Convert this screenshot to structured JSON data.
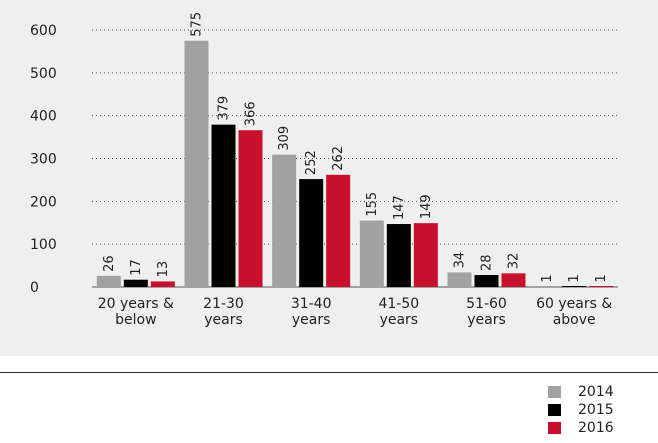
{
  "chart_data": {
    "type": "bar",
    "categories": [
      "20 years & below",
      "21-30 years",
      "31-40 years",
      "41-50 years",
      "51-60 years",
      "60 years & above"
    ],
    "category_lines": [
      [
        "20 years &",
        "below"
      ],
      [
        "21-30",
        "years"
      ],
      [
        "31-40",
        "years"
      ],
      [
        "41-50",
        "years"
      ],
      [
        "51-60",
        "years"
      ],
      [
        "60 years &",
        "above"
      ]
    ],
    "series": [
      {
        "name": "2014",
        "color": "#a1a1a1",
        "values": [
          26,
          575,
          309,
          155,
          34,
          1
        ]
      },
      {
        "name": "2015",
        "color": "#000000",
        "values": [
          17,
          379,
          252,
          147,
          28,
          1
        ]
      },
      {
        "name": "2016",
        "color": "#c8102e",
        "values": [
          13,
          366,
          262,
          149,
          32,
          1
        ]
      }
    ],
    "ylim": [
      0,
      600
    ],
    "yticks": [
      0,
      100,
      200,
      300,
      400,
      500,
      600
    ],
    "grid": "dotted horizontal",
    "legend_position": "bottom-right",
    "title": "",
    "xlabel": "",
    "ylabel": ""
  }
}
